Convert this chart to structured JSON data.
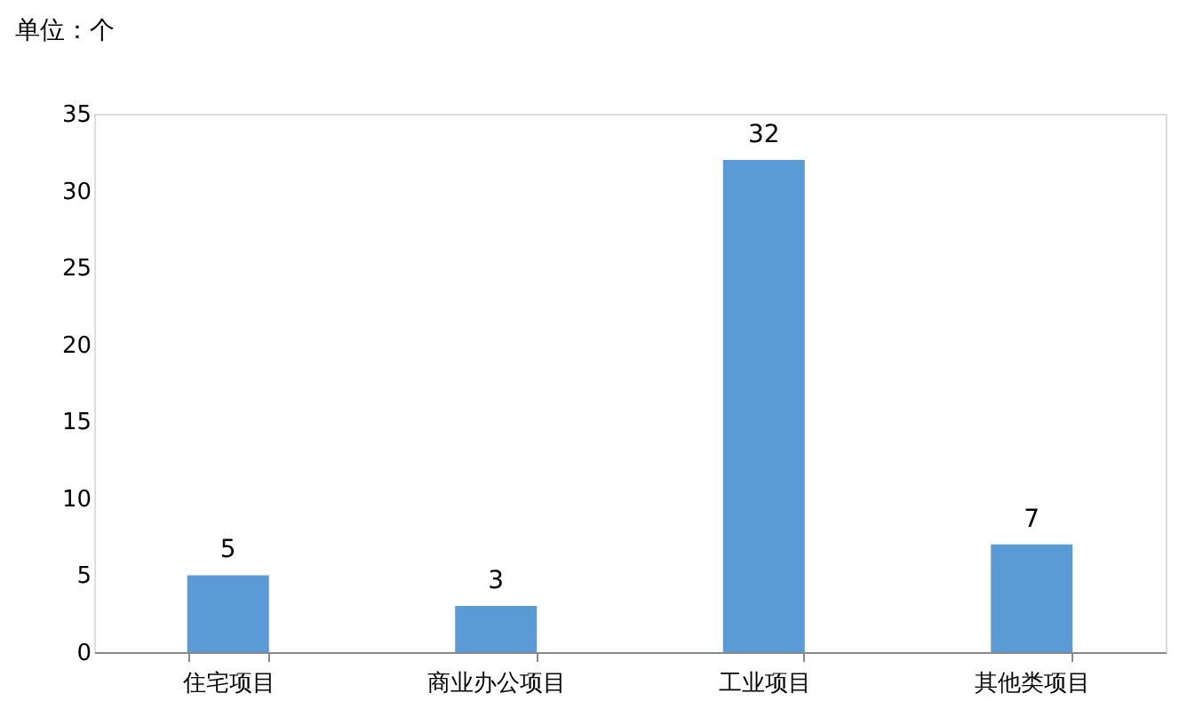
{
  "chart_data": {
    "type": "bar",
    "ylabel": "单位：个",
    "categories": [
      "住宅项目",
      "商业办公项目",
      "工业项目",
      "其他类项目"
    ],
    "values": [
      5,
      3,
      32,
      7
    ],
    "color": "#5b9bd5",
    "ylim": [
      0,
      35
    ],
    "yticks": [
      0,
      5,
      10,
      15,
      20,
      25,
      30,
      35
    ],
    "grid": false,
    "data_labels": true
  }
}
